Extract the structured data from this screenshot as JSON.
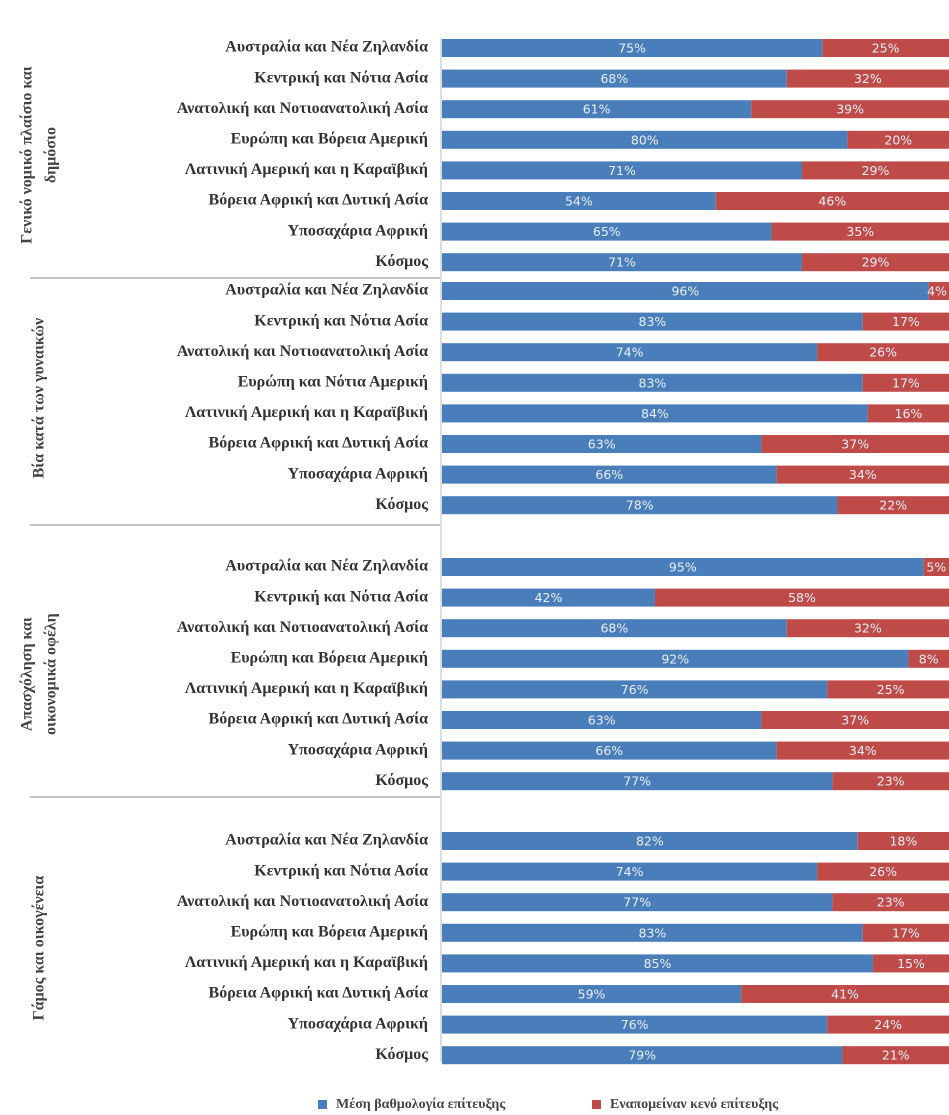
{
  "chart_data": {
    "type": "bar",
    "orientation": "horizontal",
    "stacked": true,
    "xlim": [
      0,
      100
    ],
    "series": [
      {
        "name": "Μέση βαθμολογία επίτευξης",
        "color": "#4a7ebb"
      },
      {
        "name": "Εναπομείναν κενό επίτευξης",
        "color": "#be4b48"
      }
    ],
    "groups": [
      {
        "name": [
          "Γενικό νομικό πλαίσιο και",
          "δημόσιο"
        ],
        "categories": [
          "Αυστραλία και Νέα Ζηλανδία",
          "Κεντρική και Νότια Ασία",
          "Ανατολική και Νοτιοανατολική Ασία",
          "Ευρώπη και Βόρεια Αμερική",
          "Λατινική Αμερική και η Καραϊβική",
          "Βόρεια Αφρική και Δυτική Ασία",
          "Υποσαχάρια Αφρική",
          "Κόσμος"
        ],
        "series": [
          {
            "values": [
              75,
              68,
              61,
              80,
              71,
              54,
              65,
              71
            ],
            "value_labels": [
              "75%",
              "68%",
              "61%",
              "80%",
              "71%",
              "54%",
              "65%",
              "71%"
            ]
          },
          {
            "values": [
              25,
              32,
              39,
              20,
              29,
              46,
              35,
              29
            ],
            "value_labels": [
              "25%",
              "32%",
              "39%",
              "20%",
              "29%",
              "46%",
              "35%",
              "29%"
            ]
          }
        ]
      },
      {
        "name": [
          "Βία κατά των γυναικών"
        ],
        "categories": [
          "Αυστραλία και Νέα Ζηλανδία",
          "Κεντρική και Νότια Ασία",
          "Ανατολική και Νοτιοανατολική Ασία",
          "Ευρώπη και Νότια Αμερική",
          "Λατινική Αμερική και η Καραϊβική",
          "Βόρεια Αφρική και Δυτική Ασία",
          "Υποσαχάρια Αφρική",
          "Κόσμος"
        ],
        "series": [
          {
            "values": [
              96,
              83,
              74,
              83,
              84,
              63,
              66,
              78
            ],
            "value_labels": [
              "96%",
              "83%",
              "74%",
              "83%",
              "84%",
              "63%",
              "66%",
              "78%"
            ]
          },
          {
            "values": [
              4,
              17,
              26,
              17,
              16,
              37,
              34,
              22
            ],
            "value_labels": [
              "4%",
              "17%",
              "26%",
              "17%",
              "16%",
              "37%",
              "34%",
              "22%"
            ]
          }
        ]
      },
      {
        "name": [
          "Απασχόληση και",
          "οικονομικά οφέλη"
        ],
        "categories": [
          "Αυστραλία και Νέα Ζηλανδία",
          "Κεντρική και Νότια Ασία",
          "Ανατολική και Νοτιοανατολική Ασία",
          "Ευρώπη και Βόρεια Αμερική",
          "Λατινική Αμερική και η Καραϊβική",
          "Βόρεια Αφρική και Δυτική Ασία",
          "Υποσαχάρια Αφρική",
          "Κόσμος"
        ],
        "series": [
          {
            "values": [
              95,
              42,
              68,
              92,
              76,
              63,
              66,
              77
            ],
            "value_labels": [
              "95%",
              "42%",
              "68%",
              "92%",
              "76%",
              "63%",
              "66%",
              "77%"
            ]
          },
          {
            "values": [
              5,
              58,
              32,
              8,
              25,
              37,
              34,
              23
            ],
            "value_labels": [
              "5%",
              "58%",
              "32%",
              "8%",
              "25%",
              "37%",
              "34%",
              "23%"
            ]
          }
        ]
      },
      {
        "name": [
          "Γάμος και οικογένεια"
        ],
        "categories": [
          "Αυστραλία και Νέα Ζηλανδία",
          "Κεντρική και Νότια Ασία",
          "Ανατολική και Νοτιοανατολική Ασία",
          "Ευρώπη και Βόρεια Αμερική",
          "Λατινική Αμερική και η Καραϊβική",
          "Βόρεια Αφρική και Δυτική Ασία",
          "Υποσαχάρια Αφρική",
          "Κόσμος"
        ],
        "series": [
          {
            "values": [
              82,
              74,
              77,
              83,
              85,
              59,
              76,
              79
            ],
            "value_labels": [
              "82%",
              "74%",
              "77%",
              "83%",
              "85%",
              "59%",
              "76%",
              "79%"
            ]
          },
          {
            "values": [
              18,
              26,
              23,
              17,
              15,
              41,
              24,
              21
            ],
            "value_labels": [
              "18%",
              "26%",
              "23%",
              "17%",
              "15%",
              "41%",
              "24%",
              "21%"
            ]
          }
        ]
      }
    ]
  }
}
